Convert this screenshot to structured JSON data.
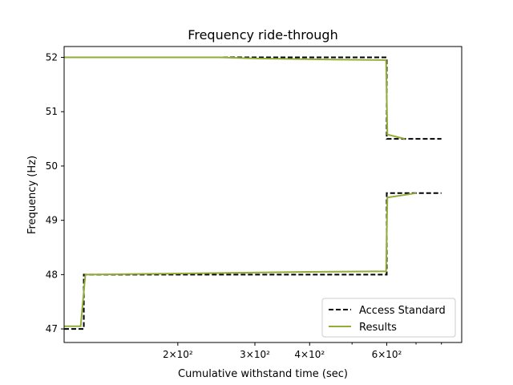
{
  "chart_data": {
    "type": "line",
    "title": "Frequency ride-through",
    "xlabel": "Cumulative withstand time (sec)",
    "ylabel": "Frequency (Hz)",
    "xscale": "log",
    "xlim": [
      110,
      890
    ],
    "ylim": [
      46.75,
      52.2
    ],
    "yticks": [
      47,
      48,
      49,
      50,
      51,
      52
    ],
    "xticks": [
      {
        "value": 200,
        "label": "2×10²"
      },
      {
        "value": 300,
        "label": "3×10²"
      },
      {
        "value": 400,
        "label": "4×10²"
      },
      {
        "value": 600,
        "label": "6×10²"
      }
    ],
    "x_minor_ticks": [
      500,
      700,
      800
    ],
    "grid": false,
    "legend": "lower-right",
    "series": [
      {
        "name": "Access Standard",
        "color": "#000000",
        "style": "dashed",
        "segments": [
          [
            [
              110,
              52.0
            ],
            [
              600,
              52.0
            ],
            [
              600,
              50.5
            ],
            [
              800,
              50.5
            ]
          ],
          [
            [
              110,
              47.0
            ],
            [
              122,
              47.0
            ],
            [
              122,
              48.0
            ],
            [
              600,
              48.0
            ],
            [
              600,
              49.5
            ],
            [
              800,
              49.5
            ]
          ]
        ]
      },
      {
        "name": "Results",
        "color": "#92ad38",
        "style": "solid",
        "segments": [
          [
            [
              110,
              52.0
            ],
            [
              250,
              52.0
            ],
            [
              300,
              51.98
            ],
            [
              450,
              51.96
            ],
            [
              598,
              51.95
            ],
            [
              602,
              50.58
            ],
            [
              660,
              50.5
            ]
          ],
          [
            [
              110,
              47.05
            ],
            [
              120,
              47.05
            ],
            [
              123,
              48.0
            ],
            [
              200,
              48.02
            ],
            [
              400,
              48.05
            ],
            [
              598,
              48.06
            ],
            [
              602,
              49.42
            ],
            [
              700,
              49.5
            ]
          ]
        ]
      }
    ]
  }
}
